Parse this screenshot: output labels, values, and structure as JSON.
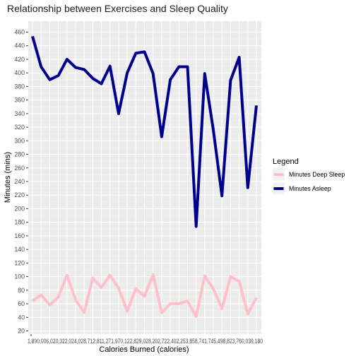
{
  "chart_data": {
    "type": "line",
    "title": "Relationship between Exercises and Sleep Quality",
    "xlabel": "Calories Burned (calories)",
    "ylabel": "Minutes (mins)",
    "ylim": [
      20,
      460
    ],
    "y_ticks": [
      20,
      40,
      60,
      80,
      100,
      120,
      140,
      160,
      180,
      200,
      220,
      240,
      260,
      280,
      300,
      320,
      340,
      360,
      380,
      400,
      420,
      440,
      460
    ],
    "x_tick_text": "1,890,006,020,322,024,028,712,811,271,970,122,829,028,202,722,402,253,858,741,745,498,823,760,039,180",
    "grid": true,
    "legend": {
      "title": "Legend",
      "position": "right",
      "entries": [
        {
          "label": "Minutes Deep Sleep",
          "color": "#ffc0cb"
        },
        {
          "label": "Minutes Asleep",
          "color": "#00008b"
        }
      ]
    },
    "series": [
      {
        "name": "Minutes Asleep",
        "color": "#00008b",
        "values": [
          454,
          409,
          390,
          396,
          420,
          408,
          405,
          392,
          384,
          410,
          340,
          400,
          429,
          431,
          399,
          306,
          390,
          409,
          409,
          174,
          399,
          316,
          219,
          389,
          423,
          231,
          352
        ]
      },
      {
        "name": "Minutes Deep Sleep",
        "color": "#ffc0cb",
        "values": [
          64,
          73,
          58,
          70,
          102,
          66,
          47,
          98,
          84,
          102,
          83,
          49,
          82,
          71,
          103,
          47,
          60,
          60,
          64,
          41,
          101,
          82,
          53,
          100,
          93,
          45,
          69
        ]
      }
    ]
  }
}
